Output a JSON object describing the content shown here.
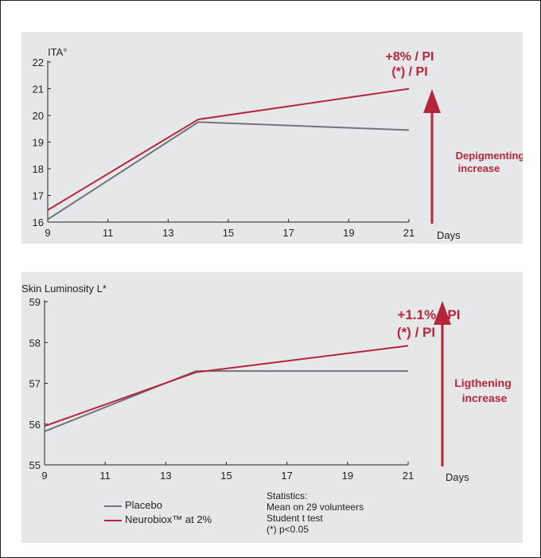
{
  "chart_data": [
    {
      "type": "line",
      "ylabel": "ITA°",
      "xlabel": "Days",
      "x_ticks": [
        "9",
        "11",
        "13",
        "15",
        "17",
        "19",
        "21"
      ],
      "y_ticks": [
        "16",
        "17",
        "18",
        "19",
        "20",
        "21",
        "22"
      ],
      "xlim": [
        9,
        21
      ],
      "ylim": [
        16,
        22
      ],
      "series": [
        {
          "name": "Placebo",
          "x": [
            9,
            14,
            21
          ],
          "values": [
            16.1,
            19.75,
            19.45
          ],
          "color": "#707479"
        },
        {
          "name": "Neurobiox™ at 2%",
          "x": [
            9,
            14,
            21
          ],
          "values": [
            16.45,
            19.85,
            21.0
          ],
          "color": "#b5263a"
        }
      ],
      "annotations": {
        "line1": "+8% / PI",
        "line2": "(*) / PI",
        "arrow_label_1": "Depigmenting",
        "arrow_label_2": "increase"
      }
    },
    {
      "type": "line",
      "ylabel": "Skin Luminosity L*",
      "xlabel": "Days",
      "x_ticks": [
        "9",
        "11",
        "13",
        "15",
        "17",
        "19",
        "21"
      ],
      "y_ticks": [
        "55",
        "56",
        "57",
        "58",
        "59"
      ],
      "xlim": [
        9,
        21
      ],
      "ylim": [
        55,
        59
      ],
      "series": [
        {
          "name": "Placebo",
          "x": [
            9,
            14,
            21
          ],
          "values": [
            55.82,
            57.3,
            57.3
          ],
          "color": "#707479"
        },
        {
          "name": "Neurobiox™ at 2%",
          "x": [
            9,
            14,
            21
          ],
          "values": [
            55.95,
            57.27,
            57.92
          ],
          "color": "#b5263a"
        }
      ],
      "annotations": {
        "line1": "+1.1% / PI",
        "line2": "(*) / PI",
        "arrow_label_1": "Ligthening",
        "arrow_label_2": "increase"
      }
    }
  ],
  "legend": {
    "placebo": "Placebo",
    "neurobiox": "Neurobiox™ at 2%",
    "placebo_color": "#707479",
    "neurobiox_color": "#b5263a"
  },
  "stats": {
    "line1": "Statistics:",
    "line2": "Mean on 29 volunteers",
    "line3": "Student t test",
    "line4": "(*) p<0.05"
  }
}
